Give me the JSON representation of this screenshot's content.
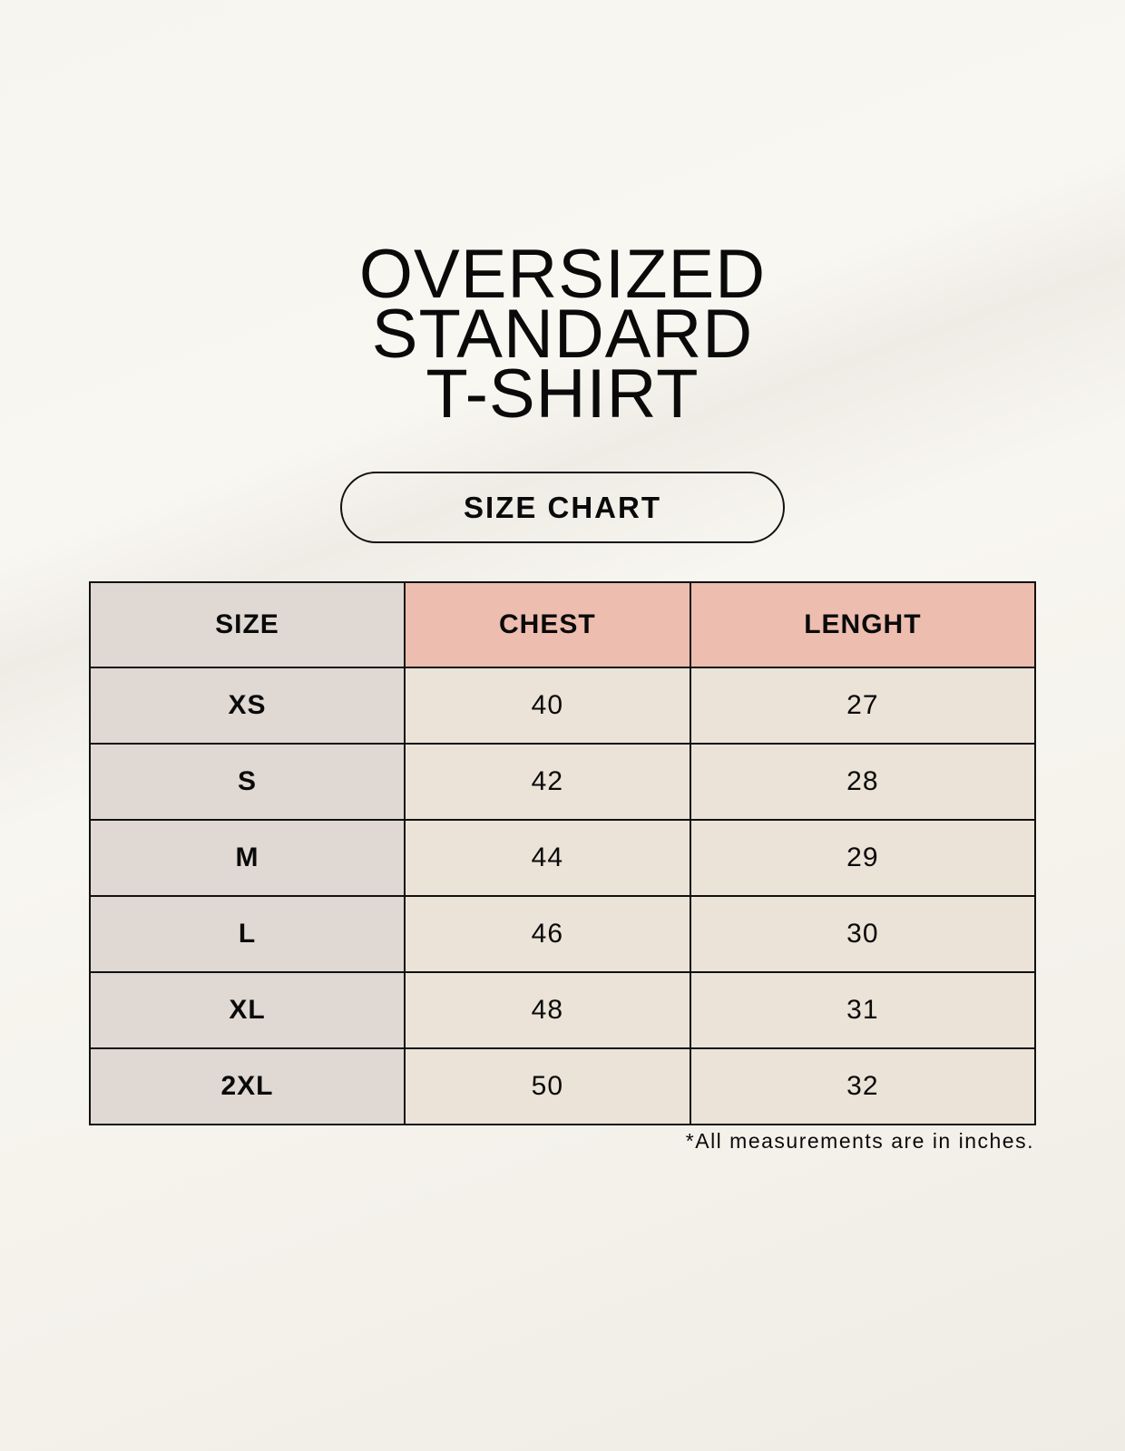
{
  "title": {
    "line1": "OVERSIZED",
    "line2": "STANDARD",
    "line3": "T-SHIRT"
  },
  "badge": "SIZE CHART",
  "table": {
    "headers": [
      "SIZE",
      "CHEST",
      "LENGHT"
    ],
    "rows": [
      [
        "XS",
        "40",
        "27"
      ],
      [
        "S",
        "42",
        "28"
      ],
      [
        "M",
        "44",
        "29"
      ],
      [
        "L",
        "46",
        "30"
      ],
      [
        "XL",
        "48",
        "31"
      ],
      [
        "2XL",
        "50",
        "32"
      ]
    ]
  },
  "footnote": "*All measurements are in inches.",
  "colors": {
    "size_column": "#e0d9d3",
    "header_accent": "#edbdaf",
    "cell": "#ebe3d8"
  }
}
